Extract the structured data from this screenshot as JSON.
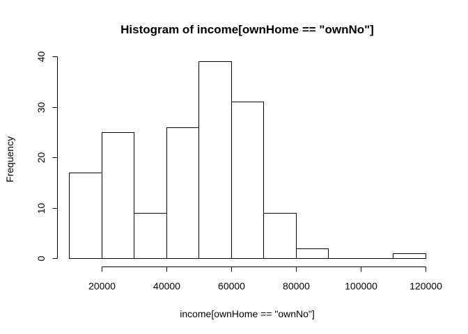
{
  "chart_data": {
    "type": "bar",
    "title": "Histogram of income[ownHome == \"ownNo\"]",
    "xlabel": "income[ownHome == \"ownNo\"]",
    "ylabel": "Frequency",
    "bins": [
      {
        "from": 10000,
        "to": 20000,
        "count": 17
      },
      {
        "from": 20000,
        "to": 30000,
        "count": 25
      },
      {
        "from": 30000,
        "to": 40000,
        "count": 9
      },
      {
        "from": 40000,
        "to": 50000,
        "count": 26
      },
      {
        "from": 50000,
        "to": 60000,
        "count": 39
      },
      {
        "from": 60000,
        "to": 70000,
        "count": 31
      },
      {
        "from": 70000,
        "to": 80000,
        "count": 9
      },
      {
        "from": 80000,
        "to": 90000,
        "count": 2
      },
      {
        "from": 90000,
        "to": 100000,
        "count": 0
      },
      {
        "from": 100000,
        "to": 110000,
        "count": 0
      },
      {
        "from": 110000,
        "to": 120000,
        "count": 1
      }
    ],
    "x_ticks": [
      20000,
      40000,
      60000,
      80000,
      100000,
      120000
    ],
    "y_ticks": [
      0,
      10,
      20,
      30,
      40
    ],
    "xlim": [
      10000,
      120000
    ],
    "ylim": [
      0,
      40
    ],
    "grid": false,
    "legend": "none"
  }
}
